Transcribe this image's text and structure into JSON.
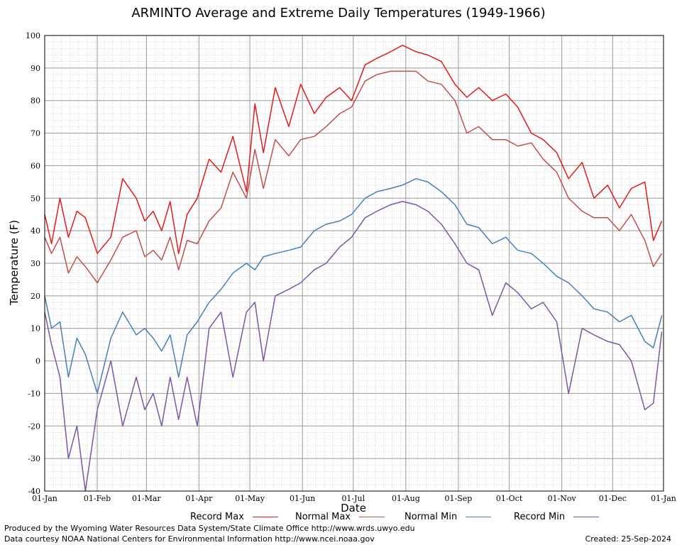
{
  "chart_data": {
    "type": "line",
    "title": "ARMINTO Average and Extreme Daily Temperatures (1949-1966)",
    "xlabel": "Date",
    "ylabel": "Temperature (F)",
    "ylim": [
      -40,
      100
    ],
    "yticks": [
      "100",
      "90",
      "80",
      "70",
      "60",
      "50",
      "40",
      "30",
      "20",
      "10",
      "0",
      "-10",
      "-20",
      "-30",
      "-40"
    ],
    "xticks": [
      "01-Jan",
      "01-Feb",
      "01-Mar",
      "01-Apr",
      "01-May",
      "01-Jun",
      "01-Jul",
      "01-Aug",
      "01-Sep",
      "01-Oct",
      "01-Nov",
      "01-Dec",
      "01-Jan"
    ],
    "grid": true,
    "legend_position": "bottom",
    "series": [
      {
        "name": "Record Max",
        "color": "#e31a1c",
        "x": [
          1,
          5,
          10,
          15,
          20,
          25,
          32,
          40,
          47,
          55,
          60,
          65,
          70,
          75,
          80,
          85,
          91,
          98,
          105,
          112,
          120,
          125,
          130,
          137,
          145,
          152,
          160,
          167,
          175,
          182,
          190,
          197,
          205,
          212,
          220,
          227,
          235,
          243,
          250,
          257,
          265,
          273,
          280,
          288,
          295,
          303,
          310,
          318,
          325,
          333,
          340,
          347,
          355,
          360,
          365
        ],
        "values": [
          45,
          36,
          50,
          38,
          46,
          44,
          33,
          38,
          56,
          50,
          43,
          46,
          40,
          49,
          33,
          45,
          50,
          62,
          58,
          69,
          52,
          79,
          64,
          84,
          72,
          85,
          76,
          81,
          84,
          80,
          91,
          93,
          95,
          97,
          95,
          94,
          92,
          85,
          81,
          84,
          80,
          82,
          78,
          70,
          68,
          64,
          56,
          61,
          50,
          54,
          47,
          53,
          55,
          37,
          43
        ]
      },
      {
        "name": "Normal Max",
        "color": "#c0504d",
        "x": [
          1,
          5,
          10,
          15,
          20,
          25,
          32,
          40,
          47,
          55,
          60,
          65,
          70,
          75,
          80,
          85,
          91,
          98,
          105,
          112,
          120,
          125,
          130,
          137,
          145,
          152,
          160,
          167,
          175,
          182,
          190,
          197,
          205,
          212,
          220,
          227,
          235,
          243,
          250,
          257,
          265,
          273,
          280,
          288,
          295,
          303,
          310,
          318,
          325,
          333,
          340,
          347,
          355,
          360,
          365
        ],
        "values": [
          38,
          33,
          38,
          27,
          32,
          29,
          24,
          31,
          38,
          40,
          32,
          34,
          31,
          38,
          28,
          37,
          36,
          43,
          47,
          58,
          50,
          65,
          53,
          68,
          63,
          68,
          69,
          72,
          76,
          78,
          86,
          88,
          89,
          89,
          89,
          86,
          85,
          80,
          70,
          72,
          68,
          68,
          66,
          67,
          62,
          58,
          50,
          46,
          44,
          44,
          40,
          45,
          37,
          29,
          33
        ]
      },
      {
        "name": "Normal Min",
        "color": "#4a7ebb",
        "x": [
          1,
          5,
          10,
          15,
          20,
          25,
          32,
          40,
          47,
          55,
          60,
          65,
          70,
          75,
          80,
          85,
          91,
          98,
          105,
          112,
          120,
          125,
          130,
          137,
          145,
          152,
          160,
          167,
          175,
          182,
          190,
          197,
          205,
          212,
          220,
          227,
          235,
          243,
          250,
          257,
          265,
          273,
          280,
          288,
          295,
          303,
          310,
          318,
          325,
          333,
          340,
          347,
          355,
          360,
          365
        ],
        "values": [
          20,
          10,
          12,
          -5,
          7,
          2,
          -10,
          7,
          15,
          8,
          10,
          7,
          3,
          8,
          -5,
          8,
          12,
          18,
          22,
          27,
          30,
          28,
          32,
          33,
          34,
          35,
          40,
          42,
          43,
          45,
          50,
          52,
          53,
          54,
          56,
          55,
          52,
          48,
          42,
          41,
          36,
          38,
          34,
          33,
          30,
          26,
          24,
          20,
          16,
          15,
          12,
          14,
          6,
          4,
          14
        ]
      },
      {
        "name": "Record Min",
        "color": "#7b56a5",
        "x": [
          1,
          5,
          10,
          15,
          20,
          25,
          32,
          40,
          47,
          55,
          60,
          65,
          70,
          75,
          80,
          85,
          91,
          98,
          105,
          112,
          120,
          125,
          130,
          137,
          145,
          152,
          160,
          167,
          175,
          182,
          190,
          197,
          205,
          212,
          220,
          227,
          235,
          243,
          250,
          257,
          265,
          273,
          280,
          288,
          295,
          303,
          310,
          318,
          325,
          333,
          340,
          347,
          355,
          360,
          365
        ],
        "values": [
          15,
          5,
          -5,
          -30,
          -20,
          -40,
          -15,
          0,
          -20,
          -5,
          -15,
          -10,
          -20,
          -5,
          -18,
          -5,
          -20,
          10,
          15,
          -5,
          15,
          18,
          0,
          20,
          22,
          24,
          28,
          30,
          35,
          38,
          44,
          46,
          48,
          49,
          48,
          46,
          42,
          36,
          30,
          28,
          14,
          24,
          21,
          16,
          18,
          12,
          -10,
          10,
          8,
          6,
          5,
          0,
          -15,
          -13,
          9
        ]
      }
    ]
  },
  "footer": {
    "produced": "Produced by the Wyoming Water Resources Data System/State Climate Office http://www.wrds.uwyo.edu",
    "courtesy": "Data courtesy NOAA National Centers for Environmental Information http://www.ncei.noaa.gov",
    "created": "Created: 25-Sep-2024"
  }
}
